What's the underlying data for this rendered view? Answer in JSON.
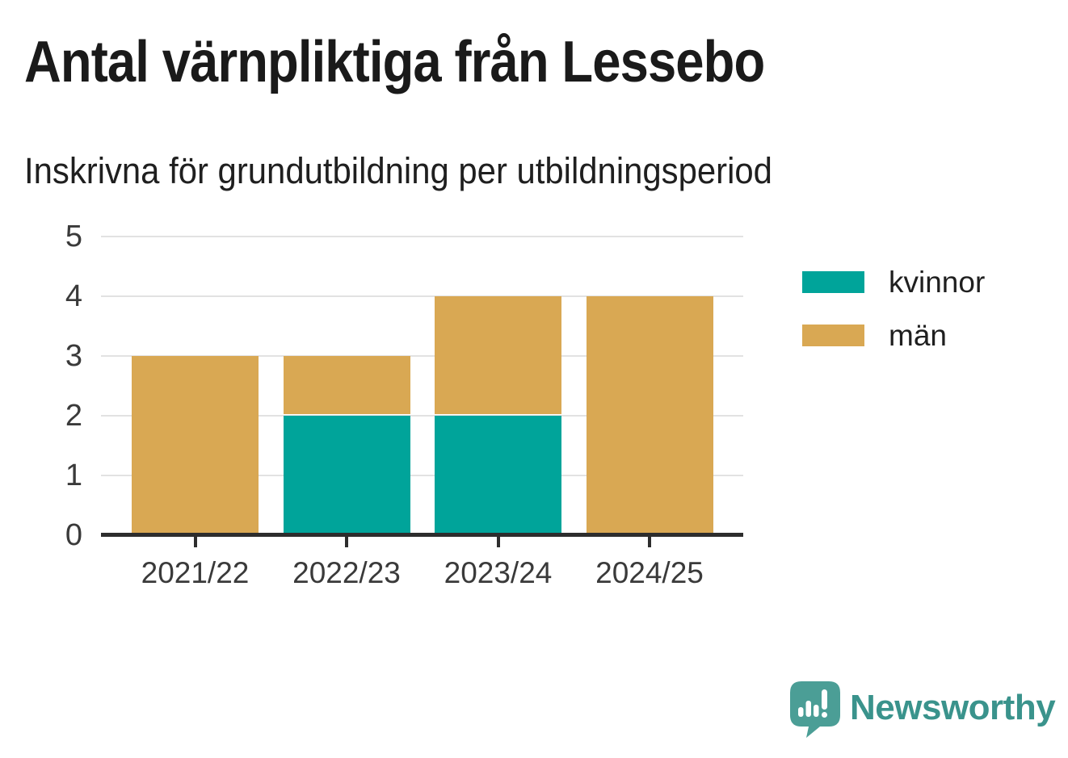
{
  "chart_data": {
    "type": "bar",
    "stacked": true,
    "title": "Antal värnpliktiga från Lessebo",
    "subtitle": "Inskrivna för grundutbildning per utbildningsperiod",
    "categories": [
      "2021/22",
      "2022/23",
      "2023/24",
      "2024/25"
    ],
    "series": [
      {
        "name": "kvinnor",
        "color": "#00a49a",
        "values": [
          0,
          2,
          2,
          0
        ]
      },
      {
        "name": "män",
        "color": "#d9a853",
        "values": [
          3,
          1,
          2,
          4
        ]
      }
    ],
    "xlabel": "",
    "ylabel": "",
    "ylim": [
      0,
      5
    ],
    "yticks": [
      0,
      1,
      2,
      3,
      4,
      5
    ],
    "grid": true,
    "legend_position": "right",
    "axis_color": "#2d2d2d",
    "gridline_color": "#e2e2e2"
  },
  "branding": {
    "name": "Newsworthy",
    "brand_color": "#3a938c",
    "logo_bubble_color": "#4b9e96",
    "logo_accent_color": "#2e8a80"
  }
}
